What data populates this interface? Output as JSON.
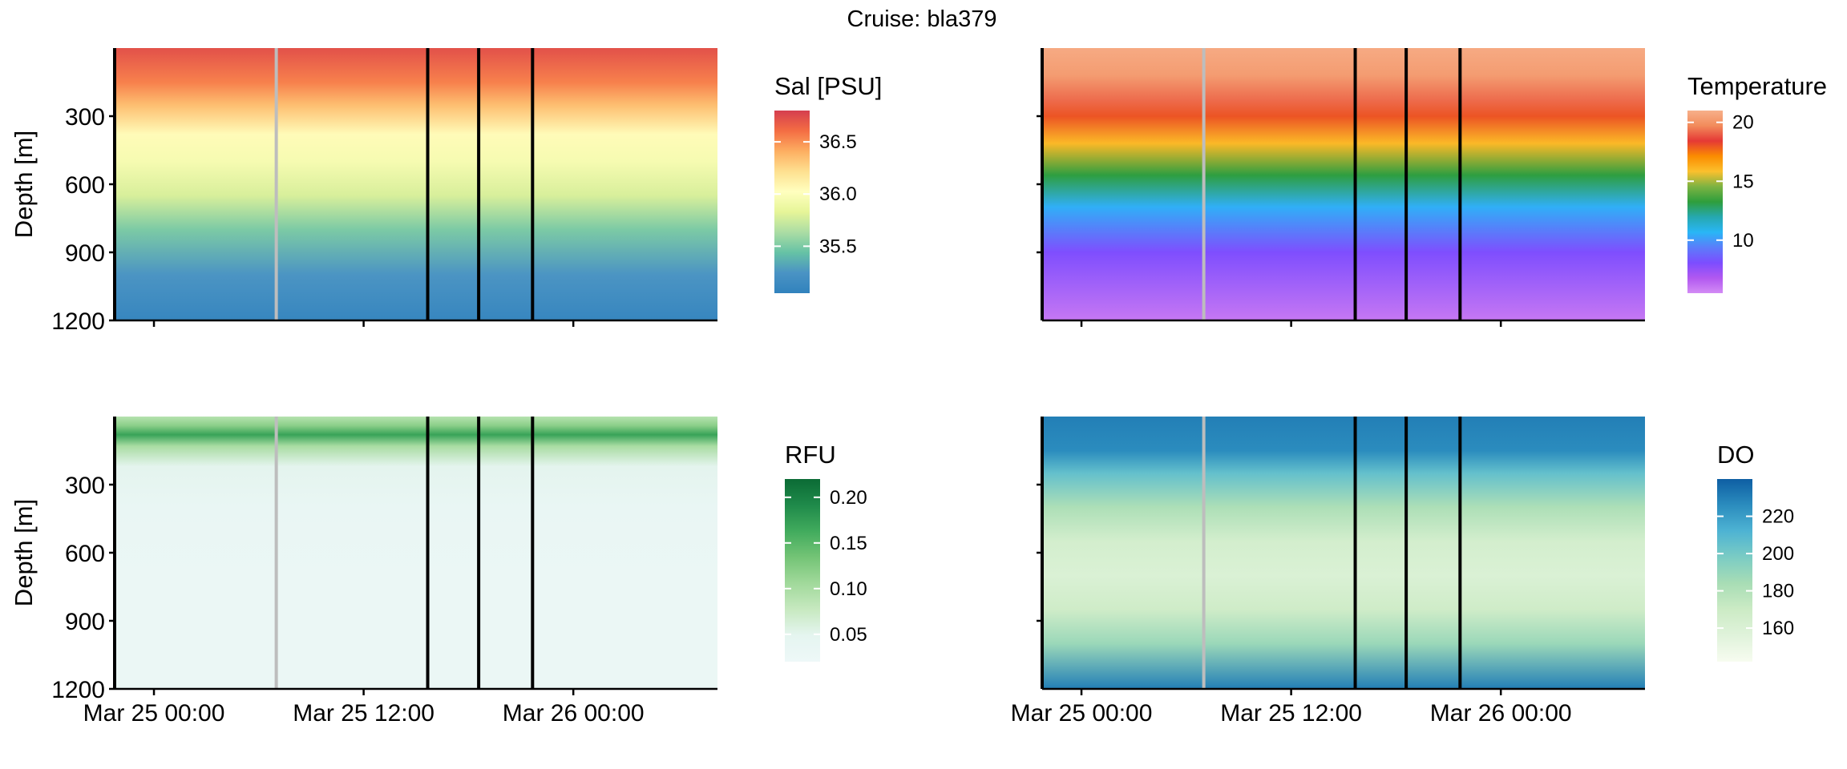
{
  "title": "Cruise: bla379",
  "chart_data": [
    {
      "type": "heatmap",
      "variable": "Sal [PSU]",
      "legend_title": "Sal [PSU]",
      "ylabel": "Depth [m]",
      "y_reversed": true,
      "ylim": [
        0,
        1200
      ],
      "y_ticks": [
        "300",
        "600",
        "900",
        "1200"
      ],
      "y_tick_values": [
        300,
        600,
        900,
        1200
      ],
      "x_tick_labels": [],
      "x_tick_values": [
        "2024-03-25T00:00",
        "2024-03-25T12:00",
        "2024-03-26T00:00"
      ],
      "xlim": [
        "2024-03-24T21:45",
        "2024-03-26T08:15"
      ],
      "colormap": "RdYlBu (reversed)",
      "colorbar_range": [
        35.05,
        36.8
      ],
      "colorbar_ticks": [
        "36.5",
        "36.0",
        "35.5"
      ],
      "colorbar_tick_values": [
        36.5,
        36.0,
        35.5
      ],
      "profile": [
        {
          "depth": 0,
          "value": 36.72
        },
        {
          "depth": 150,
          "value": 36.55
        },
        {
          "depth": 250,
          "value": 36.35
        },
        {
          "depth": 380,
          "value": 36.05
        },
        {
          "depth": 500,
          "value": 35.95
        },
        {
          "depth": 650,
          "value": 35.78
        },
        {
          "depth": 800,
          "value": 35.5
        },
        {
          "depth": 1000,
          "value": 35.25
        },
        {
          "depth": 1200,
          "value": 35.1
        }
      ],
      "station_lines": [
        {
          "time": "2024-03-24T21:45",
          "color": "#000000"
        },
        {
          "time": "2024-03-25T07:00",
          "color": "#bdbdbd"
        },
        {
          "time": "2024-03-25T15:40",
          "color": "#000000"
        },
        {
          "time": "2024-03-25T18:35",
          "color": "#000000"
        },
        {
          "time": "2024-03-25T21:40",
          "color": "#000000"
        }
      ]
    },
    {
      "type": "heatmap",
      "variable": "Temperature",
      "legend_title": "Temperature",
      "ylabel": "",
      "y_reversed": true,
      "ylim": [
        0,
        1200
      ],
      "y_ticks": [],
      "y_tick_values": [
        300,
        600,
        900
      ],
      "x_tick_labels": [],
      "x_tick_values": [
        "2024-03-25T00:00",
        "2024-03-25T12:00",
        "2024-03-26T00:00"
      ],
      "xlim": [
        "2024-03-24T21:45",
        "2024-03-26T08:15"
      ],
      "colormap": "rainbow",
      "colorbar_range": [
        5.5,
        21
      ],
      "colorbar_ticks": [
        "20",
        "15",
        "10"
      ],
      "colorbar_tick_values": [
        20,
        15,
        10
      ],
      "profile": [
        {
          "depth": 0,
          "value": 20.8
        },
        {
          "depth": 120,
          "value": 20.3
        },
        {
          "depth": 230,
          "value": 19.2
        },
        {
          "depth": 300,
          "value": 18.0
        },
        {
          "depth": 420,
          "value": 16.0
        },
        {
          "depth": 560,
          "value": 13.2
        },
        {
          "depth": 700,
          "value": 10.5
        },
        {
          "depth": 900,
          "value": 8.0
        },
        {
          "depth": 1200,
          "value": 6.0
        }
      ],
      "station_lines": [
        {
          "time": "2024-03-24T21:45",
          "color": "#000000"
        },
        {
          "time": "2024-03-25T07:00",
          "color": "#bdbdbd"
        },
        {
          "time": "2024-03-25T15:40",
          "color": "#000000"
        },
        {
          "time": "2024-03-25T18:35",
          "color": "#000000"
        },
        {
          "time": "2024-03-25T21:40",
          "color": "#000000"
        }
      ]
    },
    {
      "type": "heatmap",
      "variable": "RFU",
      "legend_title": "RFU",
      "ylabel": "Depth [m]",
      "y_reversed": true,
      "ylim": [
        0,
        1200
      ],
      "y_ticks": [
        "300",
        "600",
        "900",
        "1200"
      ],
      "y_tick_values": [
        300,
        600,
        900,
        1200
      ],
      "x_tick_labels": [
        "Mar 25 00:00",
        "Mar 25 12:00",
        "Mar 26 00:00"
      ],
      "x_tick_values": [
        "2024-03-25T00:00",
        "2024-03-25T12:00",
        "2024-03-26T00:00"
      ],
      "xlim": [
        "2024-03-24T21:45",
        "2024-03-26T08:15"
      ],
      "colormap": "Greens",
      "colorbar_range": [
        0.02,
        0.22
      ],
      "colorbar_ticks": [
        "0.20",
        "0.15",
        "0.10",
        "0.05"
      ],
      "colorbar_tick_values": [
        0.2,
        0.15,
        0.1,
        0.05
      ],
      "profile": [
        {
          "depth": 0,
          "value": 0.09
        },
        {
          "depth": 40,
          "value": 0.12
        },
        {
          "depth": 80,
          "value": 0.17
        },
        {
          "depth": 130,
          "value": 0.1
        },
        {
          "depth": 220,
          "value": 0.05
        },
        {
          "depth": 400,
          "value": 0.035
        },
        {
          "depth": 700,
          "value": 0.03
        },
        {
          "depth": 1200,
          "value": 0.03
        }
      ],
      "station_lines": [
        {
          "time": "2024-03-24T21:45",
          "color": "#000000"
        },
        {
          "time": "2024-03-25T07:00",
          "color": "#bdbdbd"
        },
        {
          "time": "2024-03-25T15:40",
          "color": "#000000"
        },
        {
          "time": "2024-03-25T18:35",
          "color": "#000000"
        },
        {
          "time": "2024-03-25T21:40",
          "color": "#000000"
        }
      ]
    },
    {
      "type": "heatmap",
      "variable": "DO",
      "legend_title": "DO",
      "ylabel": "",
      "y_reversed": true,
      "ylim": [
        0,
        1200
      ],
      "y_ticks": [],
      "y_tick_values": [
        300,
        600,
        900
      ],
      "x_tick_labels": [
        "Mar 25 00:00",
        "Mar 25 12:00",
        "Mar 26 00:00"
      ],
      "x_tick_values": [
        "2024-03-25T00:00",
        "2024-03-25T12:00",
        "2024-03-26T00:00"
      ],
      "xlim": [
        "2024-03-24T21:45",
        "2024-03-26T08:15"
      ],
      "colormap": "GnBu",
      "colorbar_range": [
        142,
        240
      ],
      "colorbar_ticks": [
        "220",
        "200",
        "180",
        "160"
      ],
      "colorbar_tick_values": [
        220,
        200,
        180,
        160
      ],
      "profile": [
        {
          "depth": 0,
          "value": 230
        },
        {
          "depth": 150,
          "value": 226
        },
        {
          "depth": 250,
          "value": 205
        },
        {
          "depth": 400,
          "value": 182
        },
        {
          "depth": 550,
          "value": 165
        },
        {
          "depth": 700,
          "value": 160
        },
        {
          "depth": 850,
          "value": 168
        },
        {
          "depth": 1000,
          "value": 188
        },
        {
          "depth": 1200,
          "value": 230
        }
      ],
      "station_lines": [
        {
          "time": "2024-03-24T21:45",
          "color": "#000000"
        },
        {
          "time": "2024-03-25T07:00",
          "color": "#bdbdbd"
        },
        {
          "time": "2024-03-25T15:40",
          "color": "#000000"
        },
        {
          "time": "2024-03-25T18:35",
          "color": "#000000"
        },
        {
          "time": "2024-03-25T21:40",
          "color": "#000000"
        }
      ]
    }
  ]
}
